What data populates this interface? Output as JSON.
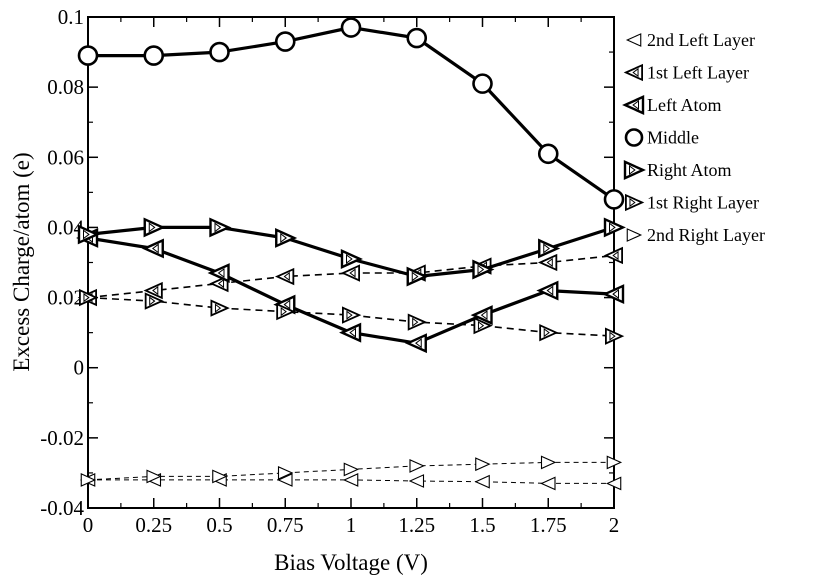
{
  "chart_data": {
    "type": "line",
    "title": "",
    "xlabel": "Bias Voltage (V)",
    "ylabel": "Excess Charge/atom (e)",
    "xlim": [
      0,
      2
    ],
    "ylim": [
      -0.04,
      0.1
    ],
    "x_ticks": [
      "0",
      "0.25",
      "0.5",
      "0.75",
      "1",
      "1.25",
      "1.5",
      "1.75",
      "2"
    ],
    "y_ticks": [
      "-0.04",
      "-0.02",
      "0",
      "0.02",
      "0.04",
      "0.06",
      "0.08",
      "0.1"
    ],
    "grid": false,
    "legend_position": "outside-right",
    "x": [
      0,
      0.25,
      0.5,
      0.75,
      1,
      1.25,
      1.5,
      1.75,
      2
    ],
    "series": [
      {
        "name": "2nd Left Layer",
        "marker": "triangle-left",
        "line": "dashed-thin",
        "values": [
          -0.032,
          -0.032,
          -0.032,
          -0.032,
          -0.032,
          -0.0323,
          -0.0325,
          -0.033,
          -0.033
        ]
      },
      {
        "name": "1st Left Layer",
        "marker": "triangle-left",
        "line": "dashed",
        "values": [
          0.02,
          0.022,
          0.024,
          0.026,
          0.027,
          0.027,
          0.029,
          0.03,
          0.032
        ]
      },
      {
        "name": "Left Atom",
        "marker": "triangle-left",
        "line": "solid",
        "values": [
          0.037,
          0.034,
          0.027,
          0.018,
          0.01,
          0.007,
          0.015,
          0.022,
          0.021
        ]
      },
      {
        "name": "Middle",
        "marker": "circle",
        "line": "solid",
        "values": [
          0.089,
          0.089,
          0.09,
          0.093,
          0.097,
          0.094,
          0.081,
          0.061,
          0.048
        ]
      },
      {
        "name": "Right Atom",
        "marker": "triangle-right",
        "line": "solid",
        "values": [
          0.038,
          0.04,
          0.04,
          0.037,
          0.031,
          0.026,
          0.028,
          0.034,
          0.04
        ]
      },
      {
        "name": "1st Right Layer",
        "marker": "triangle-right",
        "line": "dashed",
        "values": [
          0.02,
          0.019,
          0.017,
          0.016,
          0.015,
          0.013,
          0.012,
          0.01,
          0.009
        ]
      },
      {
        "name": "2nd Right Layer",
        "marker": "triangle-right",
        "line": "dashed-thin",
        "values": [
          -0.032,
          -0.031,
          -0.031,
          -0.03,
          -0.029,
          -0.028,
          -0.0275,
          -0.027,
          -0.027
        ]
      }
    ]
  }
}
